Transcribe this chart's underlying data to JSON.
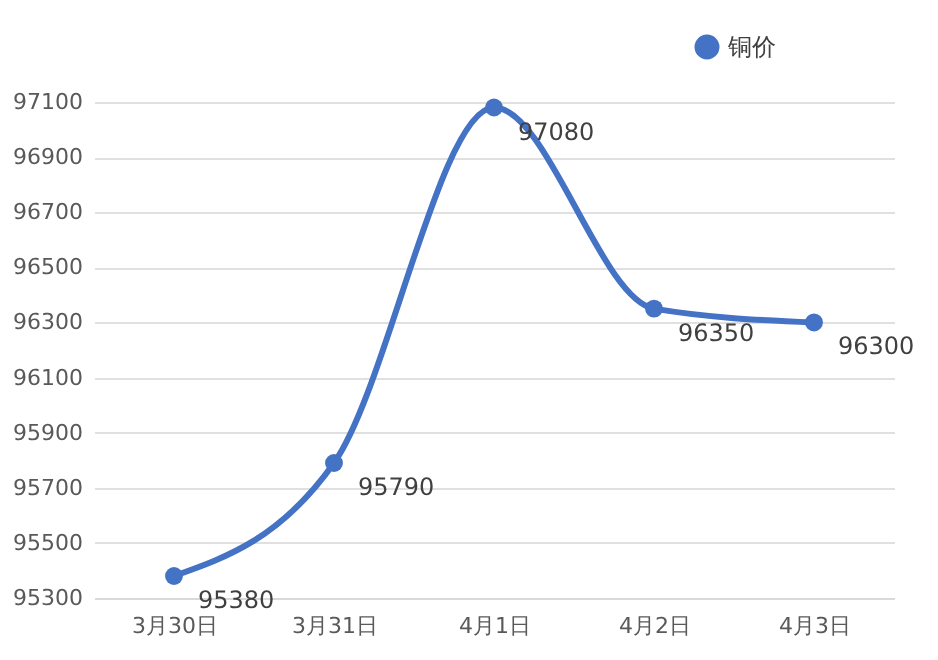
{
  "chart_data": {
    "type": "line",
    "categories": [
      "3月30日",
      "3月31日",
      "4月1日",
      "4月2日",
      "4月3日"
    ],
    "series": [
      {
        "name": "铜价",
        "color": "#4472c4",
        "values": [
          95380,
          95790,
          97080,
          96350,
          96300
        ]
      }
    ],
    "ylim": [
      95300,
      97100
    ],
    "yticks": [
      95300,
      95500,
      95700,
      95900,
      96100,
      96300,
      96500,
      96700,
      96900,
      97100
    ],
    "grid": "y",
    "legend": "top right",
    "marker": "circle",
    "line_style": "solid",
    "data_labels": true
  }
}
